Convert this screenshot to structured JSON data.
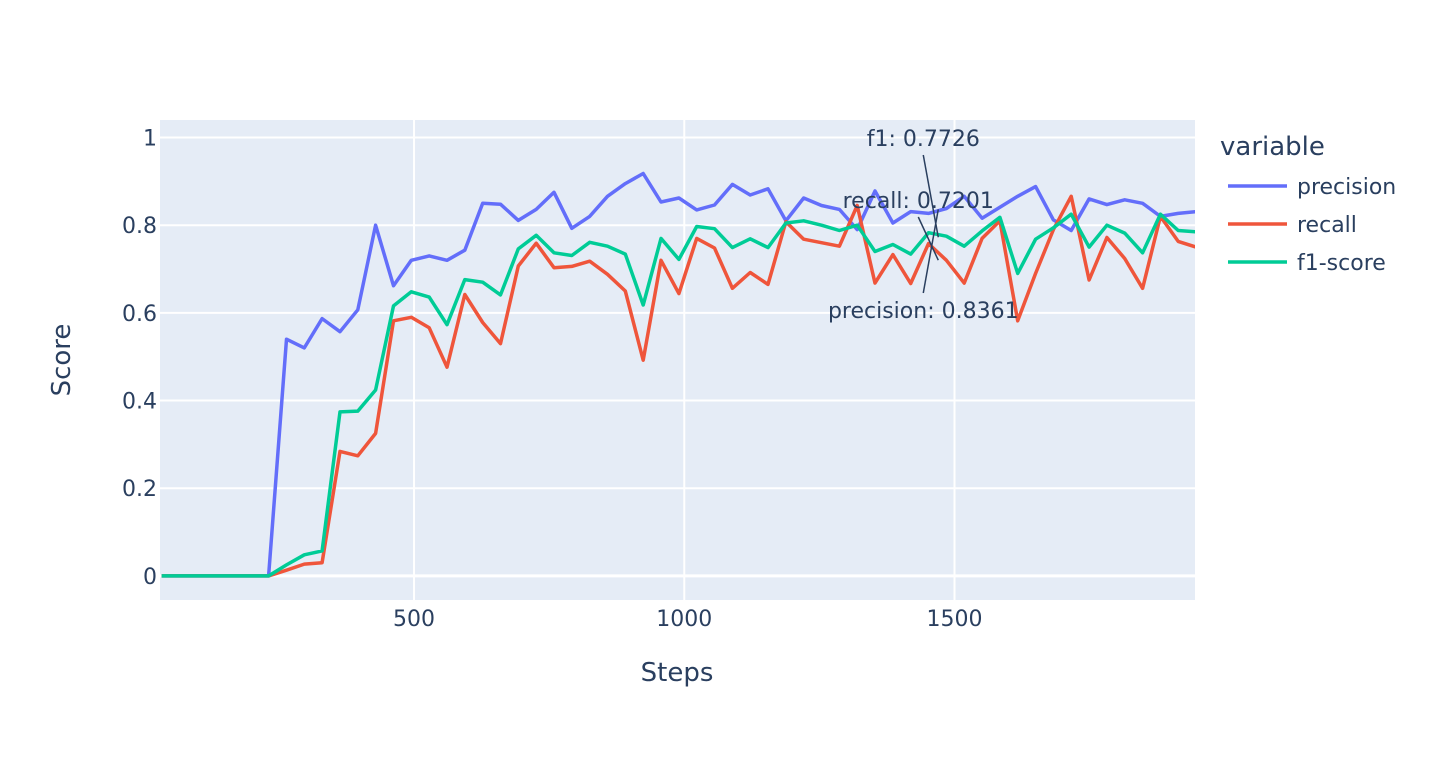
{
  "chart_data": {
    "type": "line",
    "xlabel": "Steps",
    "ylabel": "Score",
    "xlim": [
      30,
      1945
    ],
    "ylim": [
      -0.055,
      1.04
    ],
    "x_ticks": [
      500,
      1000,
      1500
    ],
    "x_tick_labels": [
      "500",
      "1000",
      "1500"
    ],
    "y_ticks": [
      0,
      0.2,
      0.4,
      0.6,
      0.8,
      1
    ],
    "y_tick_labels": [
      "0",
      "0.2",
      "0.4",
      "0.6",
      "0.8",
      "1"
    ],
    "grid": true,
    "legend": {
      "title": "variable",
      "position": "right"
    },
    "x": [
      33,
      66,
      99,
      132,
      165,
      198,
      231,
      264,
      297,
      330,
      363,
      396,
      429,
      462,
      495,
      528,
      561,
      594,
      627,
      660,
      693,
      726,
      759,
      792,
      825,
      858,
      891,
      924,
      957,
      990,
      1023,
      1056,
      1089,
      1122,
      1155,
      1188,
      1221,
      1254,
      1287,
      1320,
      1353,
      1386,
      1419,
      1452,
      1485,
      1518,
      1551,
      1584,
      1617,
      1650,
      1683,
      1716,
      1749,
      1782,
      1815,
      1848,
      1881,
      1914,
      1947
    ],
    "series": [
      {
        "name": "precision",
        "color": "#636efa",
        "values": [
          0,
          0,
          0,
          0,
          0,
          0,
          0,
          0.54,
          0.52,
          0.587,
          0.557,
          0.607,
          0.8,
          0.662,
          0.72,
          0.73,
          0.72,
          0.743,
          0.85,
          0.848,
          0.811,
          0.836,
          0.875,
          0.793,
          0.82,
          0.866,
          0.895,
          0.918,
          0.853,
          0.862,
          0.835,
          0.846,
          0.893,
          0.869,
          0.883,
          0.81,
          0.862,
          0.845,
          0.836,
          0.79,
          0.878,
          0.805,
          0.831,
          0.827,
          0.838,
          0.866,
          0.816,
          0.841,
          0.866,
          0.888,
          0.812,
          0.788,
          0.86,
          0.847,
          0.858,
          0.85,
          0.82,
          0.827,
          0.831
        ]
      },
      {
        "name": "recall",
        "color": "#ef553b",
        "values": [
          0,
          0,
          0,
          0,
          0,
          0,
          0,
          0.013,
          0.027,
          0.03,
          0.284,
          0.274,
          0.325,
          0.582,
          0.59,
          0.566,
          0.476,
          0.642,
          0.578,
          0.53,
          0.707,
          0.759,
          0.703,
          0.706,
          0.718,
          0.688,
          0.65,
          0.492,
          0.72,
          0.644,
          0.77,
          0.748,
          0.656,
          0.692,
          0.665,
          0.808,
          0.768,
          0.76,
          0.752,
          0.845,
          0.668,
          0.733,
          0.667,
          0.758,
          0.72,
          0.668,
          0.77,
          0.81,
          0.582,
          0.69,
          0.79,
          0.866,
          0.675,
          0.772,
          0.724,
          0.656,
          0.82,
          0.763,
          0.75
        ]
      },
      {
        "name": "f1-score",
        "color": "#00cc96",
        "values": [
          0,
          0,
          0,
          0,
          0,
          0,
          0,
          0.025,
          0.048,
          0.057,
          0.374,
          0.376,
          0.424,
          0.616,
          0.648,
          0.636,
          0.573,
          0.676,
          0.67,
          0.641,
          0.746,
          0.777,
          0.737,
          0.731,
          0.761,
          0.752,
          0.734,
          0.618,
          0.77,
          0.722,
          0.797,
          0.792,
          0.749,
          0.769,
          0.749,
          0.805,
          0.81,
          0.8,
          0.788,
          0.8,
          0.74,
          0.756,
          0.734,
          0.783,
          0.775,
          0.752,
          0.787,
          0.818,
          0.69,
          0.768,
          0.794,
          0.825,
          0.75,
          0.8,
          0.782,
          0.737,
          0.825,
          0.788,
          0.785
        ]
      }
    ],
    "annotations": [
      {
        "text": "f1: 0.7726",
        "x": 1470,
        "y": 0.7726
      },
      {
        "text": "recall: 0.7201",
        "x": 1470,
        "y": 0.7201
      },
      {
        "text": "precision: 0.8361",
        "x": 1470,
        "y": 0.8361
      }
    ]
  }
}
